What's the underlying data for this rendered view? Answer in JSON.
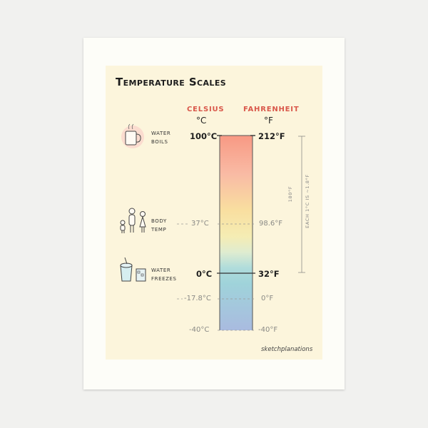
{
  "title": "Temperature Scales",
  "headers": {
    "celsius": "CELSIUS",
    "fahrenheit": "FAHRENHEIT"
  },
  "units": {
    "celsius": "°C",
    "fahrenheit": "°F"
  },
  "events": {
    "boil": [
      "WATER",
      "BOILS"
    ],
    "body": [
      "BODY",
      "TEMP"
    ],
    "freeze": [
      "WATER",
      "FREEZES"
    ]
  },
  "marks": {
    "boil": {
      "c": "100°C",
      "f": "212°F"
    },
    "body": {
      "c": "37°C",
      "f": "98.6°F"
    },
    "freeze": {
      "c": "0°C",
      "f": "32°F"
    },
    "zero_f": {
      "c": "-17.8°C",
      "f": "0°F"
    },
    "minus40": {
      "c": "-40°C",
      "f": "-40°F"
    }
  },
  "side_labels": {
    "span": "180°F",
    "rule": "EACH 1°C IS ~1.8°F"
  },
  "brand": "sketchplanations",
  "colors": {
    "accent": "#d9574a",
    "paper": "#fcf5dc",
    "bar_top": "#f7937c",
    "bar_bottom": "#9fb7de"
  }
}
